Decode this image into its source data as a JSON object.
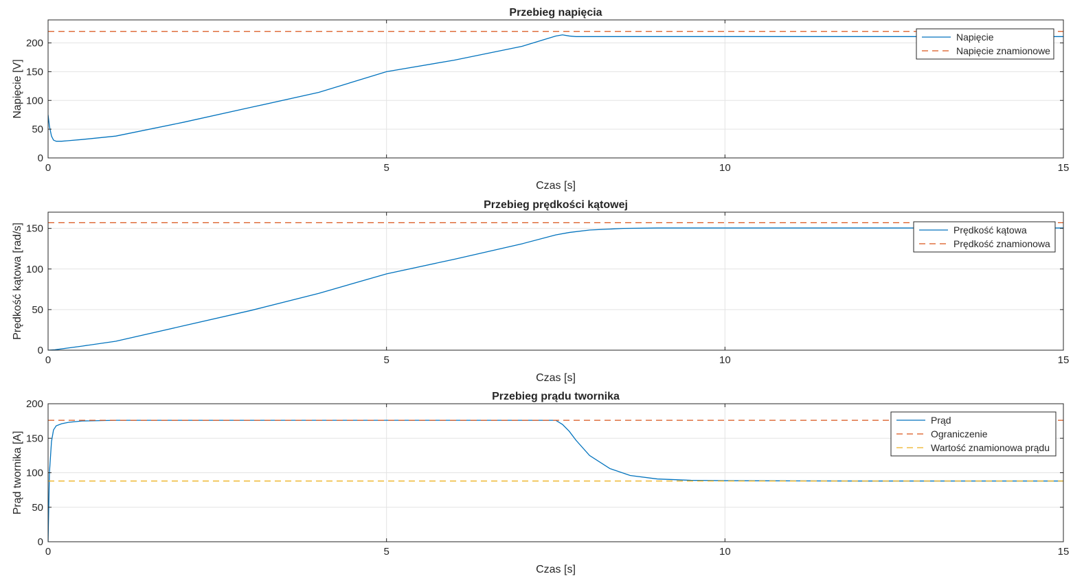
{
  "chart_data": [
    {
      "type": "line",
      "title": "Przebieg napięcia",
      "xlabel": "Czas [s]",
      "ylabel": "Napięcie [V]",
      "xlim": [
        0,
        15
      ],
      "ylim": [
        0,
        240
      ],
      "xticks": [
        0,
        5,
        10,
        15
      ],
      "yticks": [
        0,
        50,
        100,
        150,
        200
      ],
      "grid": true,
      "legend_position": "top-right",
      "series": [
        {
          "name": "Napięcie",
          "color": "#0072BD",
          "style": "solid",
          "x": [
            0,
            0.02,
            0.05,
            0.08,
            0.12,
            0.2,
            0.3,
            0.5,
            1,
            2,
            3,
            4,
            5,
            6,
            7,
            7.5,
            7.6,
            7.7,
            7.8,
            8,
            9,
            10,
            12,
            15
          ],
          "y": [
            75,
            55,
            38,
            31,
            29,
            29,
            30,
            32,
            38,
            62,
            88,
            114,
            150,
            170,
            194,
            212,
            214,
            212,
            211,
            211,
            211,
            211,
            211,
            211
          ]
        },
        {
          "name": "Napięcie znamionowe",
          "color": "#D95319",
          "style": "dashed",
          "x": [
            0,
            15
          ],
          "y": [
            220,
            220
          ]
        }
      ]
    },
    {
      "type": "line",
      "title": "Przebieg prędkości kątowej",
      "xlabel": "Czas [s]",
      "ylabel": "Prędkość kątowa [rad/s]",
      "xlim": [
        0,
        15
      ],
      "ylim": [
        0,
        170
      ],
      "xticks": [
        0,
        5,
        10,
        15
      ],
      "yticks": [
        0,
        50,
        100,
        150
      ],
      "grid": true,
      "legend_position": "top-right",
      "series": [
        {
          "name": "Prędkość kątowa",
          "color": "#0072BD",
          "style": "solid",
          "x": [
            0,
            0.1,
            0.5,
            1,
            2,
            3,
            4,
            5,
            6,
            7,
            7.5,
            7.7,
            8,
            8.5,
            9,
            10,
            12,
            15
          ],
          "y": [
            0,
            0.5,
            5,
            11,
            30,
            49,
            70,
            94,
            112,
            131,
            142,
            145,
            148,
            150,
            150.5,
            150.5,
            150.5,
            150.5
          ]
        },
        {
          "name": "Prędkość znamionowa",
          "color": "#D95319",
          "style": "dashed",
          "x": [
            0,
            15
          ],
          "y": [
            157,
            157
          ]
        }
      ]
    },
    {
      "type": "line",
      "title": "Przebieg prądu twornika",
      "xlabel": "Czas [s]",
      "ylabel": "Prąd twornika [A]",
      "xlim": [
        0,
        15
      ],
      "ylim": [
        0,
        200
      ],
      "xticks": [
        0,
        5,
        10,
        15
      ],
      "yticks": [
        0,
        50,
        100,
        150,
        200
      ],
      "grid": true,
      "legend_position": "top-right",
      "series": [
        {
          "name": "Prąd",
          "color": "#0072BD",
          "style": "solid",
          "x": [
            0,
            0.02,
            0.05,
            0.08,
            0.12,
            0.2,
            0.3,
            0.5,
            1,
            2,
            5,
            7,
            7.5,
            7.6,
            7.7,
            7.8,
            8,
            8.3,
            8.6,
            9,
            9.5,
            10,
            11,
            12,
            15
          ],
          "y": [
            0,
            100,
            145,
            162,
            168,
            171,
            173,
            175,
            176,
            176,
            176,
            176,
            176,
            170,
            160,
            147,
            125,
            106,
            96,
            91,
            89,
            88.5,
            88.2,
            88,
            88
          ]
        },
        {
          "name": "Ograniczenie",
          "color": "#D95319",
          "style": "dashed",
          "x": [
            0,
            15
          ],
          "y": [
            176,
            176
          ]
        },
        {
          "name": "Wartość znamionowa prądu",
          "color": "#EDB120",
          "style": "dashed",
          "x": [
            0,
            15
          ],
          "y": [
            88,
            88
          ]
        }
      ]
    }
  ]
}
